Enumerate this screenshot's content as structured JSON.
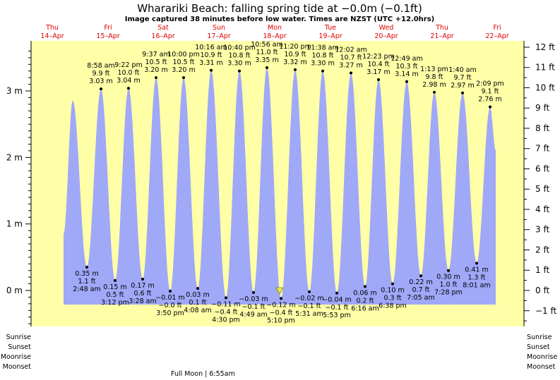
{
  "title": "Wharariki Beach: falling  spring tide at −0.0m (−0.1ft)",
  "subtitle": "Image captured 38 minutes before low water. Times are NZST (UTC +12.0hrs)",
  "days": [
    {
      "dow": "Thu",
      "date": "14–Apr"
    },
    {
      "dow": "Fri",
      "date": "15–Apr"
    },
    {
      "dow": "Sat",
      "date": "16–Apr"
    },
    {
      "dow": "Sun",
      "date": "17–Apr"
    },
    {
      "dow": "Mon",
      "date": "18–Apr"
    },
    {
      "dow": "Tue",
      "date": "19–Apr"
    },
    {
      "dow": "Wed",
      "date": "20–Apr"
    },
    {
      "dow": "Thu",
      "date": "21–Apr"
    },
    {
      "dow": "Fri",
      "date": "22–Apr"
    }
  ],
  "side_labels": [
    "Sunrise",
    "Sunset",
    "Moonrise",
    "Moonset"
  ],
  "moon_phase": "Full Moon | 6:55am",
  "colors": {
    "plot_bg": "#ffffa8",
    "water": "#a0a8f8",
    "day_label": "#e00000",
    "now_marker": "#e8e850"
  },
  "chart_data": {
    "type": "area",
    "y_left_unit": "m",
    "y_right_unit": "ft",
    "left_ticks": [
      "0 m",
      "1 m",
      "2 m",
      "3 m"
    ],
    "right_ticks": [
      "−1 ft",
      "0 ft",
      "1 ft",
      "2 ft",
      "3 ft",
      "4 ft",
      "5 ft",
      "6 ft",
      "7 ft",
      "8 ft",
      "9 ft",
      "10 ft",
      "11 ft",
      "12 ft"
    ],
    "ylim_m": [
      -0.55,
      3.7
    ],
    "first_peak_m": 2.86,
    "high_tides": [
      {
        "time": "8:58 am",
        "ft": "9.9 ft",
        "m": "3.03 m",
        "value": 3.03
      },
      {
        "time": "9:22 pm",
        "ft": "10.0 ft",
        "m": "3.04 m",
        "value": 3.04
      },
      {
        "time": "9:37 am",
        "ft": "10.5 ft",
        "m": "3.20 m",
        "value": 3.2
      },
      {
        "time": "10:00 pm",
        "ft": "10.5 ft",
        "m": "3.20 m",
        "value": 3.2
      },
      {
        "time": "10:16 am",
        "ft": "10.9 ft",
        "m": "3.31 m",
        "value": 3.31
      },
      {
        "time": "10:40 pm",
        "ft": "10.8 ft",
        "m": "3.30 m",
        "value": 3.3
      },
      {
        "time": "10:56 am",
        "ft": "11.0 ft",
        "m": "3.35 m",
        "value": 3.35
      },
      {
        "time": "11:20 pm",
        "ft": "10.9 ft",
        "m": "3.32 m",
        "value": 3.32
      },
      {
        "time": "11:38 am",
        "ft": "10.8 ft",
        "m": "3.30 m",
        "value": 3.3
      },
      {
        "time": "12:02 am",
        "ft": "10.7 ft",
        "m": "3.27 m",
        "value": 3.27
      },
      {
        "time": "12:23 pm",
        "ft": "10.4 ft",
        "m": "3.17 m",
        "value": 3.17
      },
      {
        "time": "12:49 am",
        "ft": "10.3 ft",
        "m": "3.14 m",
        "value": 3.14
      },
      {
        "time": "1:13 pm",
        "ft": "9.8 ft",
        "m": "2.98 m",
        "value": 2.98
      },
      {
        "time": "1:40 am",
        "ft": "9.7 ft",
        "m": "2.97 m",
        "value": 2.97
      },
      {
        "time": "2:09 pm",
        "ft": "9.1 ft",
        "m": "2.76 m",
        "value": 2.76
      }
    ],
    "low_tides": [
      {
        "time": "2:48 am",
        "ft": "1.1 ft",
        "m": "0.35 m",
        "value": 0.35
      },
      {
        "time": "3:12 pm",
        "ft": "0.5 ft",
        "m": "0.15 m",
        "value": 0.15
      },
      {
        "time": "3:28 am",
        "ft": "0.6 ft",
        "m": "0.17 m",
        "value": 0.17
      },
      {
        "time": "3:50 pm",
        "ft": "−0.0 ft",
        "m": "−0.01 m",
        "value": -0.01
      },
      {
        "time": "4:08 am",
        "ft": "0.1 ft",
        "m": "0.03 m",
        "value": 0.03
      },
      {
        "time": "4:30 pm",
        "ft": "−0.4 ft",
        "m": "−0.11 m",
        "value": -0.11
      },
      {
        "time": "4:49 am",
        "ft": "−0.1 ft",
        "m": "−0.03 m",
        "value": -0.03
      },
      {
        "time": "5:10 pm",
        "ft": "−0.4 ft",
        "m": "−0.12 m",
        "value": -0.12
      },
      {
        "time": "5:31 am",
        "ft": "−0.1 ft",
        "m": "−0.02 m",
        "value": -0.02
      },
      {
        "time": "5:53 pm",
        "ft": "−0.1 ft",
        "m": "−0.04 m",
        "value": -0.04
      },
      {
        "time": "6:16 am",
        "ft": "0.2 ft",
        "m": "0.06 m",
        "value": 0.06
      },
      {
        "time": "6:38 pm",
        "ft": "0.3 ft",
        "m": "0.10 m",
        "value": 0.1
      },
      {
        "time": "7:05 am",
        "ft": "0.7 ft",
        "m": "0.22 m",
        "value": 0.22
      },
      {
        "time": "7:28 pm",
        "ft": "1.0 ft",
        "m": "0.30 m",
        "value": 0.3
      },
      {
        "time": "8:01 am",
        "ft": "1.3 ft",
        "m": "0.41 m",
        "value": 0.41
      }
    ]
  }
}
